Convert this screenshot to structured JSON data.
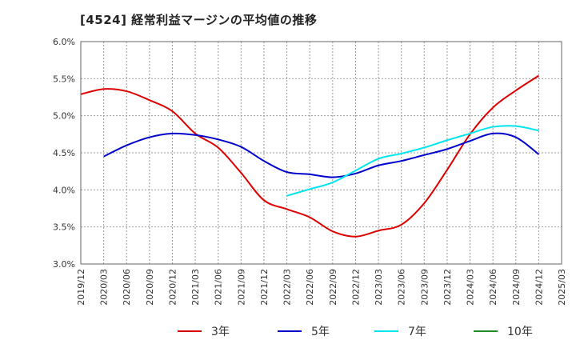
{
  "title": "[4524]  経常利益マージンの平均値の推移",
  "chart_data": {
    "type": "line",
    "title": "[4524]  経常利益マージンの平均値の推移",
    "xlabel": "",
    "ylabel": "",
    "y_unit": "%",
    "ylim": [
      3.0,
      6.0
    ],
    "y_ticks": [
      "3.0%",
      "3.5%",
      "4.0%",
      "4.5%",
      "5.0%",
      "5.5%",
      "6.0%"
    ],
    "y_tick_values": [
      3.0,
      3.5,
      4.0,
      4.5,
      5.0,
      5.5,
      6.0
    ],
    "x_ticks": [
      "2019/12",
      "2020/03",
      "2020/06",
      "2020/09",
      "2020/12",
      "2021/03",
      "2021/06",
      "2021/09",
      "2021/12",
      "2022/03",
      "2022/06",
      "2022/09",
      "2022/12",
      "2023/03",
      "2023/06",
      "2023/09",
      "2023/12",
      "2024/03",
      "2024/06",
      "2024/09",
      "2024/12",
      "2025/03"
    ],
    "grid": true,
    "legend_position": "bottom",
    "series": [
      {
        "name": "3年",
        "color": "#dd0000",
        "points": [
          [
            "2019/12",
            5.29
          ],
          [
            "2020/03",
            5.36
          ],
          [
            "2020/06",
            5.33
          ],
          [
            "2020/09",
            5.21
          ],
          [
            "2020/12",
            5.06
          ],
          [
            "2021/03",
            4.76
          ],
          [
            "2021/06",
            4.57
          ],
          [
            "2021/09",
            4.23
          ],
          [
            "2021/12",
            3.86
          ],
          [
            "2022/03",
            3.74
          ],
          [
            "2022/06",
            3.63
          ],
          [
            "2022/09",
            3.44
          ],
          [
            "2022/12",
            3.37
          ],
          [
            "2023/03",
            3.45
          ],
          [
            "2023/06",
            3.53
          ],
          [
            "2023/09",
            3.82
          ],
          [
            "2023/12",
            4.27
          ],
          [
            "2024/03",
            4.75
          ],
          [
            "2024/06",
            5.11
          ],
          [
            "2024/09",
            5.34
          ],
          [
            "2024/12",
            5.54
          ]
        ]
      },
      {
        "name": "5年",
        "color": "#0000cc",
        "points": [
          [
            "2020/03",
            4.45
          ],
          [
            "2020/06",
            4.6
          ],
          [
            "2020/09",
            4.71
          ],
          [
            "2020/12",
            4.76
          ],
          [
            "2021/03",
            4.74
          ],
          [
            "2021/06",
            4.68
          ],
          [
            "2021/09",
            4.58
          ],
          [
            "2021/12",
            4.39
          ],
          [
            "2022/03",
            4.24
          ],
          [
            "2022/06",
            4.21
          ],
          [
            "2022/09",
            4.17
          ],
          [
            "2022/12",
            4.22
          ],
          [
            "2023/03",
            4.33
          ],
          [
            "2023/06",
            4.39
          ],
          [
            "2023/09",
            4.47
          ],
          [
            "2023/12",
            4.55
          ],
          [
            "2024/03",
            4.66
          ],
          [
            "2024/06",
            4.76
          ],
          [
            "2024/09",
            4.71
          ],
          [
            "2024/12",
            4.48
          ]
        ]
      },
      {
        "name": "7年",
        "color": "#00e5ee",
        "points": [
          [
            "2022/03",
            3.92
          ],
          [
            "2022/06",
            4.01
          ],
          [
            "2022/09",
            4.1
          ],
          [
            "2022/12",
            4.26
          ],
          [
            "2023/03",
            4.42
          ],
          [
            "2023/06",
            4.49
          ],
          [
            "2023/09",
            4.57
          ],
          [
            "2023/12",
            4.67
          ],
          [
            "2024/03",
            4.76
          ],
          [
            "2024/06",
            4.85
          ],
          [
            "2024/09",
            4.86
          ],
          [
            "2024/12",
            4.8
          ]
        ]
      },
      {
        "name": "10年",
        "color": "#228b22",
        "points": []
      }
    ]
  }
}
